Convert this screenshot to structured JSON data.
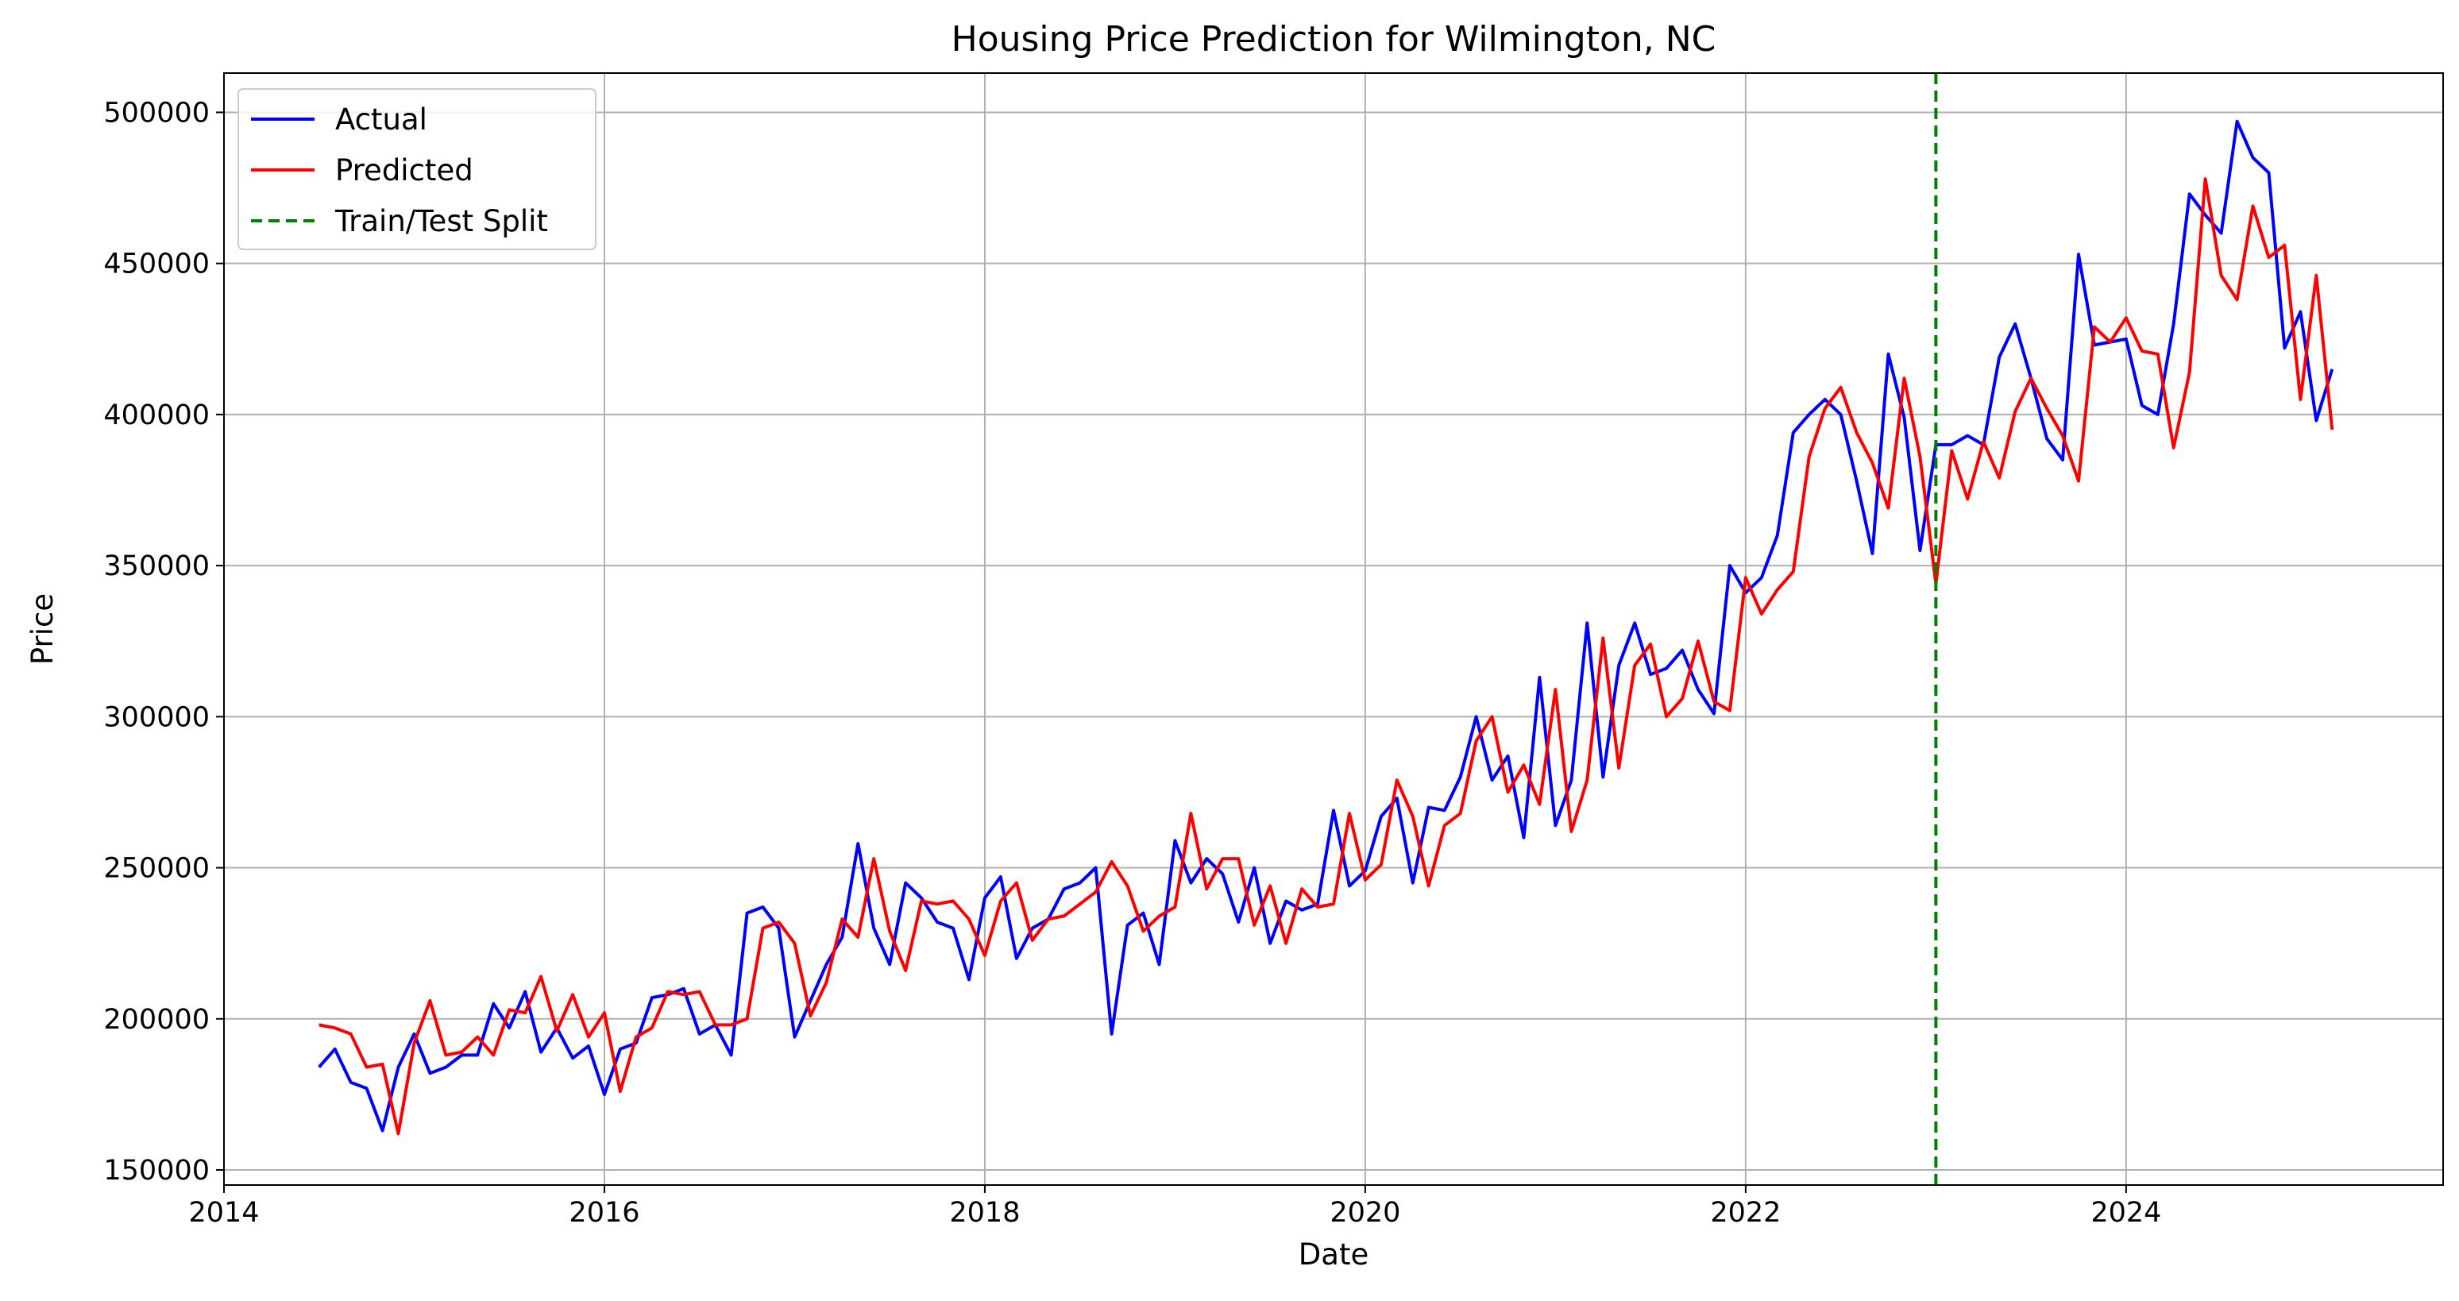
{
  "chart_data": {
    "type": "line",
    "title": "Housing Price Prediction for Wilmington, NC",
    "xlabel": "Date",
    "ylabel": "Price",
    "xlim": [
      "2014-01-01",
      "2025-09-01"
    ],
    "ylim": [
      145000,
      513000
    ],
    "grid": true,
    "legend_position": "top-left",
    "x_tick_labels": [
      "2014",
      "2016",
      "2018",
      "2020",
      "2022",
      "2024"
    ],
    "y_tick_labels": [
      "150000",
      "200000",
      "250000",
      "300000",
      "350000",
      "400000",
      "450000",
      "500000"
    ],
    "legend": [
      "Actual",
      "Predicted",
      "Train/Test Split"
    ],
    "colors": {
      "actual": "#0000ff",
      "predicted": "#ff0000",
      "split": "#008000"
    },
    "x": [
      "2014-07",
      "2014-08",
      "2014-09",
      "2014-10",
      "2014-11",
      "2014-12",
      "2015-01",
      "2015-02",
      "2015-03",
      "2015-04",
      "2015-05",
      "2015-06",
      "2015-07",
      "2015-08",
      "2015-09",
      "2015-10",
      "2015-11",
      "2015-12",
      "2016-01",
      "2016-02",
      "2016-03",
      "2016-04",
      "2016-05",
      "2016-06",
      "2016-07",
      "2016-08",
      "2016-09",
      "2016-10",
      "2016-11",
      "2016-12",
      "2017-01",
      "2017-02",
      "2017-03",
      "2017-04",
      "2017-05",
      "2017-06",
      "2017-07",
      "2017-08",
      "2017-09",
      "2017-10",
      "2017-11",
      "2017-12",
      "2018-01",
      "2018-02",
      "2018-03",
      "2018-04",
      "2018-05",
      "2018-06",
      "2018-07",
      "2018-08",
      "2018-09",
      "2018-10",
      "2018-11",
      "2018-12",
      "2019-01",
      "2019-02",
      "2019-03",
      "2019-04",
      "2019-05",
      "2019-06",
      "2019-07",
      "2019-08",
      "2019-09",
      "2019-10",
      "2019-11",
      "2019-12",
      "2020-01",
      "2020-02",
      "2020-03",
      "2020-04",
      "2020-05",
      "2020-06",
      "2020-07",
      "2020-08",
      "2020-09",
      "2020-10",
      "2020-11",
      "2020-12",
      "2021-01",
      "2021-02",
      "2021-03",
      "2021-04",
      "2021-05",
      "2021-06",
      "2021-07",
      "2021-08",
      "2021-09",
      "2021-10",
      "2021-11",
      "2021-12",
      "2022-01",
      "2022-02",
      "2022-03",
      "2022-04",
      "2022-05",
      "2022-06",
      "2022-07",
      "2022-08",
      "2022-09",
      "2022-10",
      "2022-11",
      "2022-12",
      "2023-01",
      "2023-02",
      "2023-03",
      "2023-04",
      "2023-05",
      "2023-06",
      "2023-07",
      "2023-08",
      "2023-09",
      "2023-10",
      "2023-11",
      "2023-12",
      "2024-01",
      "2024-02",
      "2024-03",
      "2024-04",
      "2024-05",
      "2024-06",
      "2024-07",
      "2024-08",
      "2024-09",
      "2024-10",
      "2024-11",
      "2024-12",
      "2025-01",
      "2025-02"
    ],
    "series": [
      {
        "name": "Actual",
        "values": [
          184000,
          190000,
          179000,
          177000,
          163000,
          184000,
          195000,
          182000,
          184000,
          188000,
          188000,
          205000,
          197000,
          209000,
          189000,
          197000,
          187000,
          191000,
          175000,
          190000,
          192000,
          207000,
          208000,
          210000,
          195000,
          198000,
          188000,
          235000,
          237000,
          230000,
          194000,
          206000,
          218000,
          227000,
          258000,
          230000,
          218000,
          245000,
          240000,
          232000,
          230000,
          213000,
          240000,
          247000,
          220000,
          230000,
          233000,
          243000,
          245000,
          250000,
          195000,
          231000,
          235000,
          218000,
          259000,
          245000,
          253000,
          248000,
          232000,
          250000,
          225000,
          239000,
          236000,
          238000,
          269000,
          244000,
          249000,
          267000,
          273000,
          245000,
          270000,
          269000,
          280000,
          300000,
          279000,
          287000,
          260000,
          313000,
          264000,
          279000,
          331000,
          280000,
          317000,
          331000,
          314000,
          316000,
          322000,
          309000,
          301000,
          350000,
          341000,
          346000,
          360000,
          394000,
          400000,
          405000,
          400000,
          378000,
          354000,
          420000,
          399000,
          355000,
          390000,
          390000,
          393000,
          390000,
          419000,
          430000,
          412000,
          392000,
          385000,
          453000,
          423000,
          424000,
          425000,
          403000,
          400000,
          430000,
          473000,
          466000,
          460000,
          497000,
          485000,
          480000,
          422000,
          434000,
          398000,
          415000
        ]
      },
      {
        "name": "Predicted",
        "values": [
          198000,
          197000,
          195000,
          184000,
          185000,
          162000,
          192000,
          206000,
          188000,
          189000,
          194000,
          188000,
          203000,
          202000,
          214000,
          196000,
          208000,
          194000,
          202000,
          176000,
          194000,
          197000,
          209000,
          208000,
          209000,
          198000,
          198000,
          200000,
          230000,
          232000,
          225000,
          201000,
          212000,
          233000,
          227000,
          253000,
          229000,
          216000,
          239000,
          238000,
          239000,
          233000,
          221000,
          239000,
          245000,
          226000,
          233000,
          234000,
          238000,
          242000,
          252000,
          244000,
          229000,
          234000,
          237000,
          268000,
          243000,
          253000,
          253000,
          231000,
          244000,
          225000,
          243000,
          237000,
          238000,
          268000,
          246000,
          251000,
          279000,
          267000,
          244000,
          264000,
          268000,
          292000,
          300000,
          275000,
          284000,
          271000,
          309000,
          262000,
          279000,
          326000,
          283000,
          317000,
          324000,
          300000,
          306000,
          325000,
          305000,
          302000,
          346000,
          334000,
          342000,
          348000,
          386000,
          402000,
          409000,
          394000,
          384000,
          369000,
          412000,
          386000,
          344000,
          388000,
          372000,
          391000,
          379000,
          401000,
          412000,
          402000,
          393000,
          378000,
          429000,
          424000,
          432000,
          421000,
          420000,
          389000,
          414000,
          478000,
          446000,
          438000,
          469000,
          452000,
          456000,
          405000,
          446000,
          395000
        ]
      }
    ],
    "split_date": "2023-01"
  }
}
